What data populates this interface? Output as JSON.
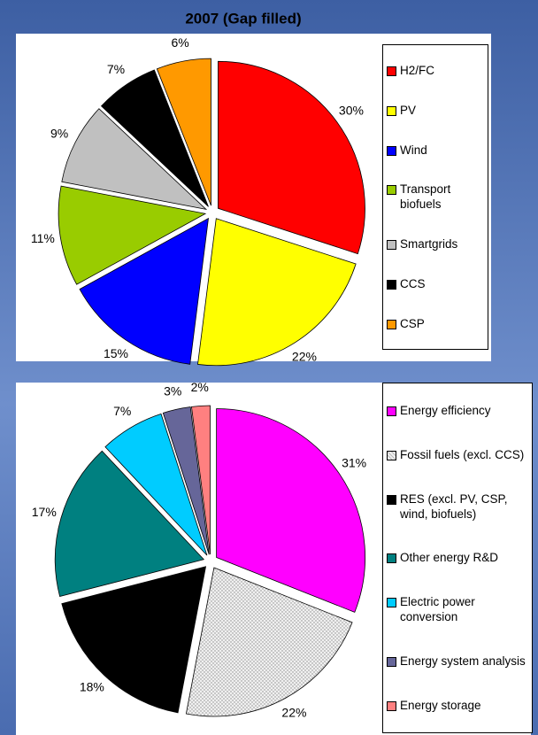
{
  "chart_data": [
    {
      "type": "pie",
      "title": "2007 (Gap filled)",
      "categories": [
        "H2/FC",
        "PV",
        "Wind",
        "Transport biofuels",
        "Smartgrids",
        "CCS",
        "CSP"
      ],
      "values": [
        30,
        22,
        15,
        11,
        9,
        7,
        6
      ],
      "value_labels": [
        "30%",
        "22%",
        "15%",
        "11%",
        "9%",
        "7%",
        "6%"
      ],
      "colors": [
        "#ff0000",
        "#ffff00",
        "#0000ff",
        "#99cc00",
        "#c0c0c0",
        "#000000",
        "#ff9900"
      ]
    },
    {
      "type": "pie",
      "categories": [
        "Energy efficiency",
        "Fossil fuels (excl. CCS)",
        "RES (excl. PV, CSP, wind, biofuels)",
        "Other energy R&D",
        "Electric power conversion",
        "Energy system analysis",
        "Energy storage"
      ],
      "values": [
        31,
        22,
        18,
        17,
        7,
        3,
        2
      ],
      "value_labels": [
        "31%",
        "22%",
        "18%",
        "17%",
        "7%",
        "3%",
        "2%"
      ],
      "colors": [
        "#ff00ff",
        "#e4e4e4",
        "#000000",
        "#008080",
        "#00ccff",
        "#666699",
        "#ff8080"
      ],
      "patterns": [
        null,
        "dots",
        null,
        null,
        null,
        null,
        null
      ]
    }
  ]
}
